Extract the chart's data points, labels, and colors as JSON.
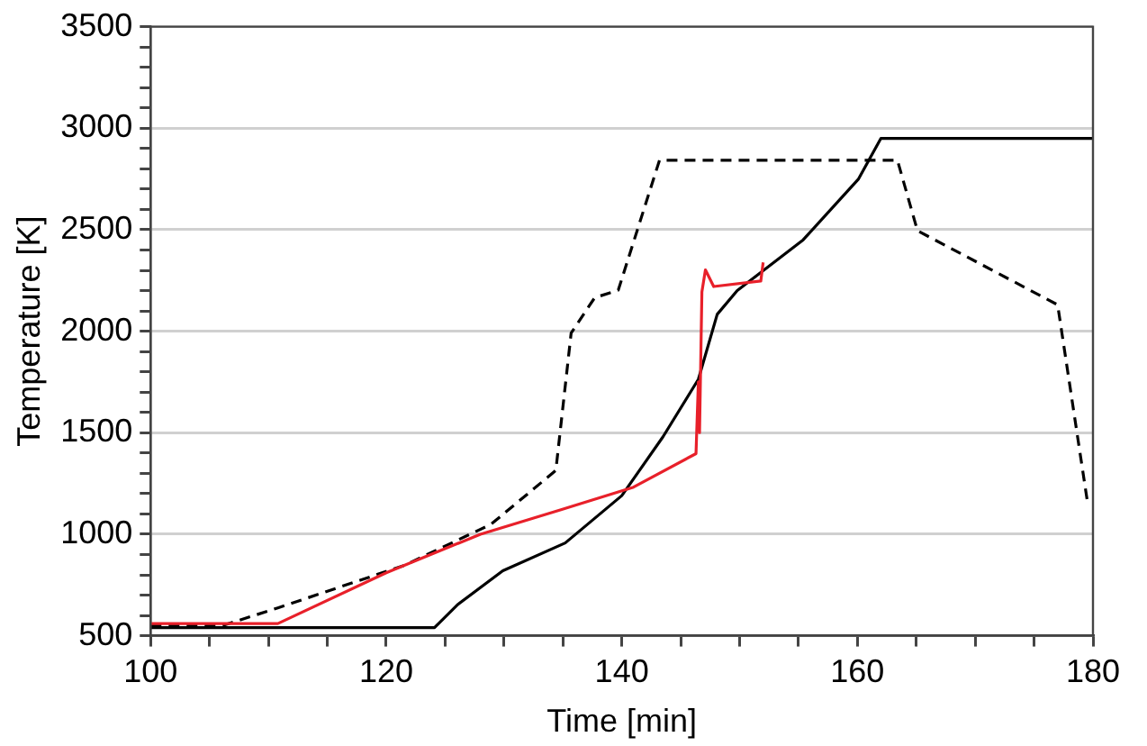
{
  "chart_data": {
    "type": "line",
    "xlabel": "Time [min]",
    "ylabel": "Temperature [K]",
    "xlim": [
      100,
      180
    ],
    "xticks": [
      100,
      {
        "value": 105,
        "label": null
      },
      {
        "value": 110,
        "label": null
      },
      {
        "value": 115,
        "label": null
      },
      120,
      {
        "value": 125,
        "label": null
      },
      {
        "value": 130,
        "label": null
      },
      {
        "value": 135,
        "label": null
      },
      140,
      {
        "value": 145,
        "label": null
      },
      {
        "value": 150,
        "label": null
      },
      {
        "value": 155,
        "label": null
      },
      160,
      {
        "value": 165,
        "label": null
      },
      {
        "value": 170,
        "label": null
      },
      {
        "value": 175,
        "label": null
      },
      180
    ],
    "ylim": [
      500,
      3500
    ],
    "yticks": [
      500,
      {
        "value": 600,
        "label": null
      },
      {
        "value": 700,
        "label": null
      },
      {
        "value": 800,
        "label": null
      },
      {
        "value": 900,
        "label": null
      },
      1000,
      {
        "value": 1100,
        "label": null
      },
      {
        "value": 1200,
        "label": null
      },
      {
        "value": 1300,
        "label": null
      },
      {
        "value": 1400,
        "label": null
      },
      1500,
      {
        "value": 1600,
        "label": null
      },
      {
        "value": 1700,
        "label": null
      },
      {
        "value": 1800,
        "label": null
      },
      {
        "value": 1900,
        "label": null
      },
      2000,
      {
        "value": 2100,
        "label": null
      },
      {
        "value": 2200,
        "label": null
      },
      {
        "value": 2300,
        "label": null
      },
      {
        "value": 2400,
        "label": null
      },
      2500,
      {
        "value": 2600,
        "label": null
      },
      {
        "value": 2700,
        "label": null
      },
      {
        "value": 2800,
        "label": null
      },
      {
        "value": 2900,
        "label": null
      },
      3000,
      {
        "value": 3100,
        "label": null
      },
      {
        "value": 3200,
        "label": null
      },
      {
        "value": 3300,
        "label": null
      },
      {
        "value": 3400,
        "label": null
      },
      3500
    ],
    "grid": "y",
    "marker": "none",
    "series": [
      {
        "color": "#e8202a",
        "line_style": "solid",
        "x": [
          100,
          110.8,
          120,
          128,
          134.9,
          141,
          146.3,
          146.5,
          146.6,
          146.8,
          147.1,
          147.8,
          151.8,
          152
        ],
        "values": [
          560,
          560,
          810,
          1000,
          1122,
          1232,
          1397,
          1750,
          1500,
          2193,
          2302,
          2220,
          2247,
          2339
        ]
      },
      {
        "color": "#000000",
        "line_style": "solid",
        "x": [
          100,
          124.1,
          126.1,
          129.9,
          135.2,
          140,
          143.5,
          146.5,
          148.1,
          149.8,
          155.4,
          160.1,
          162,
          180
        ],
        "values": [
          540,
          540,
          655,
          820,
          957,
          1190,
          1480,
          1763,
          2083,
          2200,
          2450,
          2750,
          2950,
          2950
        ]
      },
      {
        "color": "#000000",
        "line_style": "dashed",
        "x": [
          100,
          106.1,
          110.8,
          121.6,
          128.9,
          134.4,
          135.7,
          137.7,
          139.7,
          141,
          143.2,
          163.4,
          165.1,
          177,
          179.5,
          180
        ],
        "values": [
          550,
          550,
          637,
          848,
          1049,
          1314,
          1991,
          2165,
          2202,
          2440,
          2842,
          2842,
          2495,
          2130,
          1170,
          1170
        ]
      }
    ]
  }
}
